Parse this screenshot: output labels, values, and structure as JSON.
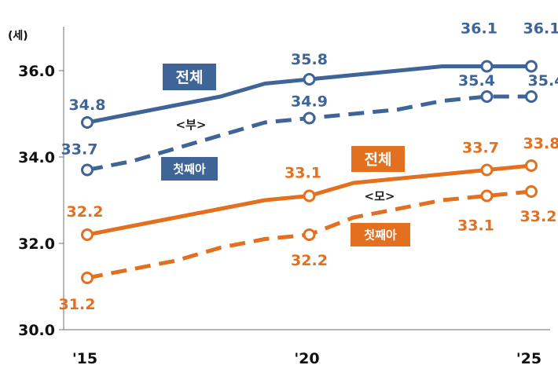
{
  "chart_data": {
    "type": "line",
    "ylabel": "(세)",
    "ylim": [
      30,
      37
    ],
    "yticks": [
      "30.0",
      "32.0",
      "34.0",
      "36.0"
    ],
    "xlim": [
      2015,
      2025
    ],
    "xticks": [
      "'15",
      "'20",
      "'25"
    ],
    "grid": false,
    "group_labels": {
      "father": "<부>",
      "mother": "<모>"
    },
    "colors": {
      "father": "#3f6498",
      "mother": "#e2701f"
    },
    "series": [
      {
        "name": "전체",
        "group": "father",
        "style": "solid",
        "x": [
          2015,
          2016,
          2017,
          2018,
          2019,
          2020,
          2021,
          2022,
          2023,
          2024,
          2025
        ],
        "y": [
          34.8,
          35.0,
          35.2,
          35.4,
          35.7,
          35.8,
          35.9,
          36.0,
          36.1,
          36.1,
          36.1
        ],
        "markers": [
          {
            "x": 2015,
            "label": "34.8"
          },
          {
            "x": 2020,
            "label": "35.8"
          },
          {
            "x": 2024,
            "label": "36.1"
          },
          {
            "x": 2025,
            "label": "36.1"
          }
        ]
      },
      {
        "name": "첫째아",
        "group": "father",
        "style": "dashed",
        "x": [
          2015,
          2016,
          2017,
          2018,
          2019,
          2020,
          2021,
          2022,
          2023,
          2024,
          2025
        ],
        "y": [
          33.7,
          33.9,
          34.2,
          34.5,
          34.8,
          34.9,
          35.0,
          35.1,
          35.3,
          35.4,
          35.4
        ],
        "markers": [
          {
            "x": 2015,
            "label": "33.7"
          },
          {
            "x": 2020,
            "label": "34.9"
          },
          {
            "x": 2024,
            "label": "35.4"
          },
          {
            "x": 2025,
            "label": "35.4"
          }
        ]
      },
      {
        "name": "전체",
        "group": "mother",
        "style": "solid",
        "x": [
          2015,
          2016,
          2017,
          2018,
          2019,
          2020,
          2021,
          2022,
          2023,
          2024,
          2025
        ],
        "y": [
          32.2,
          32.4,
          32.6,
          32.8,
          33.0,
          33.1,
          33.4,
          33.5,
          33.6,
          33.7,
          33.8
        ],
        "markers": [
          {
            "x": 2015,
            "label": "32.2"
          },
          {
            "x": 2020,
            "label": "33.1"
          },
          {
            "x": 2024,
            "label": "33.7"
          },
          {
            "x": 2025,
            "label": "33.8"
          }
        ]
      },
      {
        "name": "첫째아",
        "group": "mother",
        "style": "dashed",
        "x": [
          2015,
          2016,
          2017,
          2018,
          2019,
          2020,
          2021,
          2022,
          2023,
          2024,
          2025
        ],
        "y": [
          31.2,
          31.4,
          31.6,
          31.9,
          32.1,
          32.2,
          32.6,
          32.8,
          33.0,
          33.1,
          33.2
        ],
        "markers": [
          {
            "x": 2015,
            "label": "31.2"
          },
          {
            "x": 2020,
            "label": "32.2"
          },
          {
            "x": 2024,
            "label": "33.1"
          },
          {
            "x": 2025,
            "label": "33.2"
          }
        ]
      }
    ]
  }
}
